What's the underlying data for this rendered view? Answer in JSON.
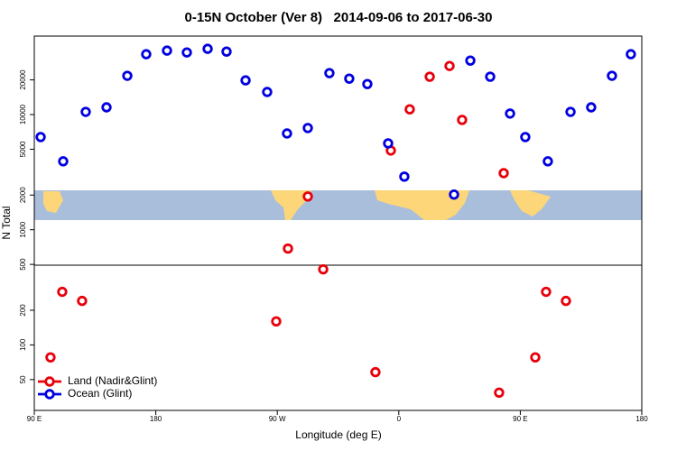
{
  "chart_data": {
    "type": "scatter",
    "title": "0-15N October (Ver 8)   2014-09-06 to 2017-06-30",
    "x_label": "Longitude (deg E)",
    "y_label": "N Total",
    "xlim": [
      90,
      540
    ],
    "ylim": [
      27,
      48000
    ],
    "ylog": true,
    "legend": "bottomleft",
    "xticks": [
      {
        "value": 90,
        "label": "90 E"
      },
      180,
      {
        "value": 270,
        "label": "90 W"
      },
      {
        "value": 360,
        "label": "0"
      },
      {
        "value": 450,
        "label": "90 E"
      },
      {
        "value": 540,
        "label": "180"
      }
    ],
    "yticks": [
      50,
      100,
      200,
      500,
      1000,
      2000,
      5000,
      10000,
      20000
    ],
    "series": [
      {
        "name": "Land (Nadir&Glint)",
        "color": "#e8000b",
        "x": [
          102,
          110.7,
          125.4,
          269.2,
          277.9,
          292.6,
          304,
          342.7,
          354.1,
          368.1,
          382.9,
          397.6,
          406.9,
          434.3,
          437.7,
          461.1,
          469.1,
          483.8
        ],
        "values": [
          78,
          289,
          241,
          160,
          686,
          1945,
          453,
          58,
          4870,
          11100,
          21300,
          26400,
          8980,
          38.5,
          3100,
          78,
          289,
          241
        ]
      },
      {
        "name": "Ocean (Glint)",
        "color": "#0000e0",
        "x": [
          94.7,
          111.4,
          128.1,
          143.5,
          158.9,
          172.9,
          188.3,
          203,
          218.4,
          232.4,
          246.5,
          262.5,
          277.2,
          292.6,
          308.6,
          323.3,
          336.7,
          352.1,
          364.1,
          400.9,
          413,
          427.7,
          442.4,
          453.7,
          470.4,
          487.2,
          502.5,
          517.9,
          531.9
        ],
        "values": [
          6380,
          3925,
          10550,
          11550,
          21700,
          33400,
          35900,
          34600,
          37200,
          35200,
          19800,
          15700,
          6850,
          7640,
          22900,
          20500,
          18400,
          5620,
          2890,
          2020,
          29400,
          21300,
          10200,
          6380,
          3925,
          10550,
          11550,
          21700,
          33400
        ]
      }
    ]
  }
}
